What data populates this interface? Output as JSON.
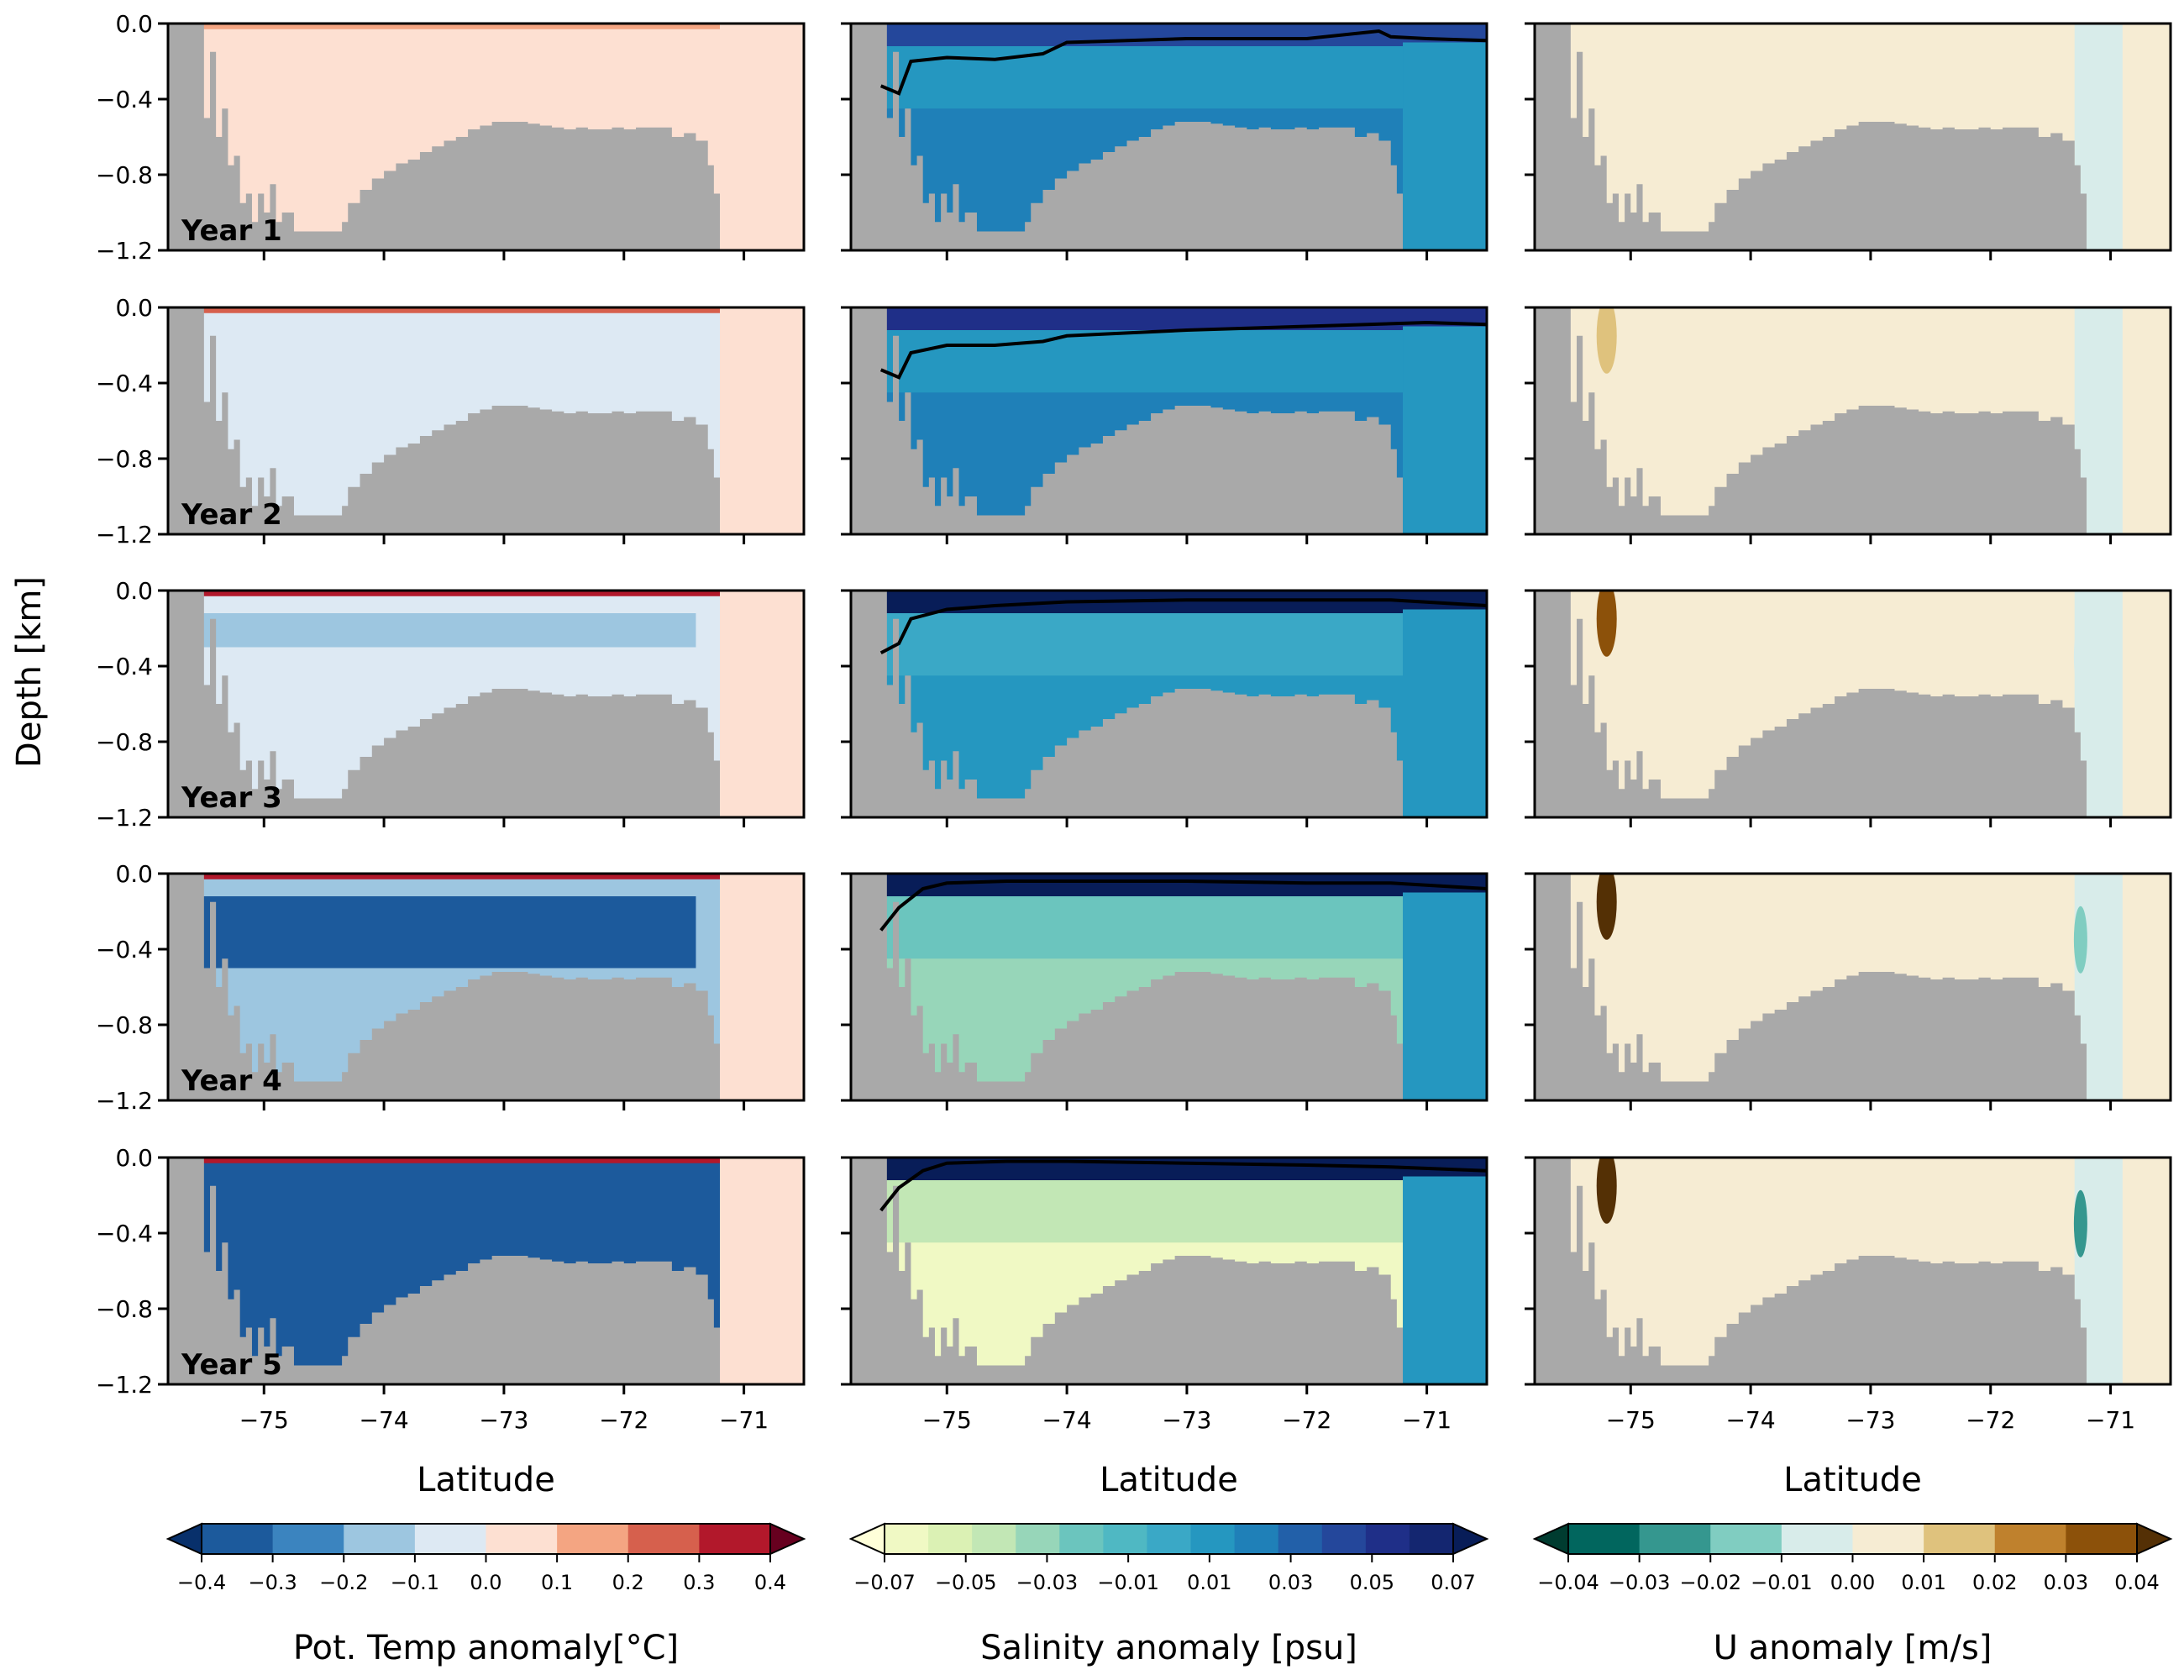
{
  "chart_data": {
    "type": "heatmap",
    "layout": "5 rows x 3 columns of latitude-depth sections",
    "row_labels": [
      "Year 1",
      "Year 2",
      "Year 3",
      "Year 4",
      "Year 5"
    ],
    "xlabel": "Latitude",
    "ylabel": "Depth [km]",
    "xlim": [
      -75.8,
      -70.5
    ],
    "ylim": [
      -1.2,
      0.0
    ],
    "x_ticks": [
      -75,
      -74,
      -73,
      -72,
      -71
    ],
    "x_tick_labels": [
      "−75",
      "−74",
      "−73",
      "−72",
      "−71"
    ],
    "y_ticks": [
      0.0,
      -0.4,
      -0.8,
      -1.2
    ],
    "y_tick_labels": [
      "0.0",
      "−0.4",
      "−0.8",
      "−1.2"
    ],
    "land_color": "#a9a9a9",
    "bathymetry_lat": [
      -75.8,
      -75.55,
      -75.5,
      -75.45,
      -75.4,
      -75.35,
      -75.3,
      -75.25,
      -75.2,
      -75.15,
      -75.1,
      -75.05,
      -75.0,
      -74.95,
      -74.9,
      -74.85,
      -74.8,
      -74.75,
      -74.7,
      -74.65,
      -74.6,
      -74.55,
      -74.5,
      -74.45,
      -74.4,
      -74.35,
      -74.3,
      -74.2,
      -74.1,
      -74.0,
      -73.9,
      -73.8,
      -73.7,
      -73.6,
      -73.5,
      -73.4,
      -73.3,
      -73.2,
      -73.1,
      -73.0,
      -72.9,
      -72.8,
      -72.7,
      -72.6,
      -72.5,
      -72.4,
      -72.3,
      -72.2,
      -72.1,
      -72.0,
      -71.9,
      -71.8,
      -71.7,
      -71.6,
      -71.5,
      -71.4,
      -71.3,
      -71.25,
      -71.2,
      -71.15,
      -70.5
    ],
    "bathymetry_depth": [
      0.0,
      0.0,
      -0.5,
      -0.15,
      -0.6,
      -0.45,
      -0.75,
      -0.7,
      -0.95,
      -0.9,
      -1.05,
      -0.9,
      -1.0,
      -0.85,
      -1.05,
      -1.0,
      -1.0,
      -1.1,
      -1.1,
      -1.1,
      -1.1,
      -1.1,
      -1.1,
      -1.1,
      -1.1,
      -1.05,
      -0.95,
      -0.88,
      -0.82,
      -0.78,
      -0.74,
      -0.72,
      -0.68,
      -0.65,
      -0.62,
      -0.6,
      -0.56,
      -0.54,
      -0.52,
      -0.52,
      -0.52,
      -0.53,
      -0.54,
      -0.55,
      -0.56,
      -0.55,
      -0.56,
      -0.56,
      -0.55,
      -0.56,
      -0.55,
      -0.55,
      -0.55,
      -0.6,
      -0.58,
      -0.62,
      -0.75,
      -0.9,
      -1.2,
      -1.2,
      -1.2
    ],
    "panels": [
      {
        "variable": "Pot. Temp anomaly[°C]",
        "colormap": "RdBu_r",
        "levels": [
          -0.4,
          -0.3,
          -0.2,
          -0.1,
          0.0,
          0.1,
          0.2,
          0.3,
          0.4
        ],
        "level_colors": [
          "#08306b",
          "#1c5a9c",
          "#3b84bf",
          "#9dc6e0",
          "#dde9f3",
          "#fde0d2",
          "#f4a582",
          "#d6604d",
          "#b2182b",
          "#67001f"
        ],
        "years": [
          {
            "year": 1,
            "surface": 0.1,
            "subsurface_core": 0.0,
            "core_depth_km": 0.3,
            "deep": 0.0
          },
          {
            "year": 2,
            "surface": 0.2,
            "subsurface_core": -0.05,
            "core_depth_km": 0.3,
            "deep": -0.05
          },
          {
            "year": 3,
            "surface": 0.3,
            "subsurface_core": -0.2,
            "core_depth_km": 0.3,
            "deep": -0.05
          },
          {
            "year": 4,
            "surface": 0.3,
            "subsurface_core": -0.35,
            "core_depth_km": 0.5,
            "deep": -0.2
          },
          {
            "year": 5,
            "surface": 0.3,
            "subsurface_core": -0.4,
            "core_depth_km": 0.6,
            "deep": -0.35
          }
        ]
      },
      {
        "variable": "Salinity anomaly [psu]",
        "colormap": "YlGnBu",
        "levels": [
          -0.07,
          -0.06,
          -0.05,
          -0.04,
          -0.03,
          -0.02,
          -0.01,
          0.0,
          0.01,
          0.02,
          0.03,
          0.04,
          0.05,
          0.06,
          0.07
        ],
        "level_colors": [
          "#ffffd9",
          "#f0f9c4",
          "#dbf1b4",
          "#c2e7b5",
          "#97d6b9",
          "#6bc5be",
          "#4fb8c3",
          "#3aa8c6",
          "#2597c0",
          "#1f80b8",
          "#2260a9",
          "#24479b",
          "#1f2f88",
          "#142670",
          "#081d58"
        ],
        "contour_line": "black line marking mixed-layer base",
        "contour_depth_km": [
          {
            "year": 1,
            "lat": [
              -75.55,
              -75.4,
              -75.3,
              -75.0,
              -74.6,
              -74.2,
              -74.0,
              -73.0,
              -72.0,
              -71.4,
              -71.3,
              -71.0,
              -70.5
            ],
            "depth": [
              -0.33,
              -0.37,
              -0.2,
              -0.18,
              -0.19,
              -0.16,
              -0.1,
              -0.08,
              -0.08,
              -0.04,
              -0.07,
              -0.08,
              -0.09
            ]
          },
          {
            "year": 2,
            "lat": [
              -75.55,
              -75.4,
              -75.3,
              -75.0,
              -74.6,
              -74.2,
              -74.0,
              -73.0,
              -72.0,
              -71.0,
              -70.5
            ],
            "depth": [
              -0.33,
              -0.37,
              -0.24,
              -0.2,
              -0.2,
              -0.18,
              -0.15,
              -0.12,
              -0.1,
              -0.08,
              -0.09
            ]
          },
          {
            "year": 3,
            "lat": [
              -75.55,
              -75.4,
              -75.3,
              -75.0,
              -74.6,
              -74.0,
              -73.0,
              -72.0,
              -71.3,
              -70.5
            ],
            "depth": [
              -0.33,
              -0.28,
              -0.15,
              -0.1,
              -0.08,
              -0.06,
              -0.05,
              -0.05,
              -0.05,
              -0.08
            ]
          },
          {
            "year": 4,
            "lat": [
              -75.55,
              -75.4,
              -75.2,
              -75.0,
              -74.5,
              -74.0,
              -73.0,
              -72.0,
              -71.3,
              -70.5
            ],
            "depth": [
              -0.3,
              -0.18,
              -0.08,
              -0.05,
              -0.04,
              -0.04,
              -0.04,
              -0.05,
              -0.05,
              -0.08
            ]
          },
          {
            "year": 5,
            "lat": [
              -75.55,
              -75.4,
              -75.2,
              -75.0,
              -74.5,
              -74.0,
              -73.0,
              -72.0,
              -71.3,
              -70.5
            ],
            "depth": [
              -0.28,
              -0.16,
              -0.07,
              -0.03,
              -0.02,
              -0.02,
              -0.03,
              -0.04,
              -0.05,
              -0.07
            ]
          }
        ],
        "years": [
          {
            "year": 1,
            "upper": 0.03,
            "interior": 0.0,
            "deep": 0.01
          },
          {
            "year": 2,
            "upper": 0.04,
            "interior": 0.0,
            "deep": 0.01
          },
          {
            "year": 3,
            "upper": 0.06,
            "interior": -0.01,
            "deep": 0.0
          },
          {
            "year": 4,
            "upper": 0.07,
            "interior": -0.03,
            "deep": -0.04
          },
          {
            "year": 5,
            "upper": 0.07,
            "interior": -0.05,
            "deep": -0.07
          }
        ]
      },
      {
        "variable": "U anomaly [m/s]",
        "colormap": "BrBG_r",
        "levels": [
          -0.04,
          -0.03,
          -0.02,
          -0.01,
          0.0,
          0.01,
          0.02,
          0.03,
          0.04
        ],
        "level_colors": [
          "#003c30",
          "#01665e",
          "#35978f",
          "#80cdc1",
          "#d8ecea",
          "#f6ecd3",
          "#dfc27d",
          "#bf812d",
          "#8c510a",
          "#543005"
        ],
        "years": [
          {
            "year": 1,
            "jet_south": 0.0,
            "jet_north": 0.0
          },
          {
            "year": 2,
            "jet_south": 0.01,
            "jet_north": 0.0
          },
          {
            "year": 3,
            "jet_south": 0.03,
            "jet_north": -0.01
          },
          {
            "year": 4,
            "jet_south": 0.04,
            "jet_north": -0.02
          },
          {
            "year": 5,
            "jet_south": 0.04,
            "jet_north": -0.03
          }
        ]
      }
    ],
    "colorbars": [
      {
        "label": "Pot. Temp anomaly[°C]",
        "tick_labels": [
          "−0.4",
          "−0.3",
          "−0.2",
          "−0.1",
          "0.0",
          "0.1",
          "0.2",
          "0.3",
          "0.4"
        ],
        "extend": "both"
      },
      {
        "label": "Salinity anomaly [psu]",
        "tick_labels": [
          "−0.07",
          "−0.05",
          "−0.03",
          "−0.01",
          "0.01",
          "0.03",
          "0.05",
          "0.07"
        ],
        "extend": "both"
      },
      {
        "label": "U anomaly [m/s]",
        "tick_labels": [
          "−0.04",
          "−0.03",
          "−0.02",
          "−0.01",
          "0.00",
          "0.01",
          "0.02",
          "0.03",
          "0.04"
        ],
        "extend": "both"
      }
    ]
  }
}
